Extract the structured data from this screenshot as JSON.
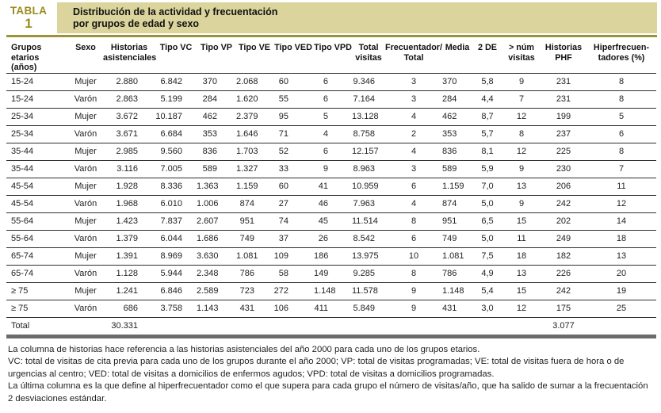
{
  "header": {
    "badge_label": "TABLA",
    "badge_number": "1",
    "title_line1": "Distribución de la actividad y frecuentación",
    "title_line2": "por grupos de edad y sexo"
  },
  "colors": {
    "accent_olive": "#9c8c1e",
    "title_bar_bg": "#dbd49d",
    "rule_olive": "#9b923a",
    "line_dark": "#2f2f2f",
    "bottom_bar_gray": "#6b6b6b",
    "text": "#1b1b1b"
  },
  "table": {
    "columns": [
      "Grupos etarios\n(años)",
      "Sexo",
      "Historias\nasistenciales",
      "Tipo VC",
      "Tipo VP",
      "Tipo VE",
      "Tipo VED",
      "Tipo VPD",
      "Total\nvisitas",
      "Frecuentador/\nTotal",
      "Media",
      "2 DE",
      "> núm\nvisitas",
      "Historias\nPHF",
      "Hiperfrecuen-\ntadores (%)"
    ],
    "rows": [
      [
        "15-24",
        "Mujer",
        "2.880",
        "6.842",
        "370",
        "2.068",
        "60",
        "6",
        "9.346",
        "3",
        "370",
        "5,8",
        "9",
        "231",
        "8"
      ],
      [
        "15-24",
        "Varón",
        "2.863",
        "5.199",
        "284",
        "1.620",
        "55",
        "6",
        "7.164",
        "3",
        "284",
        "4,4",
        "7",
        "231",
        "8"
      ],
      [
        "25-34",
        "Mujer",
        "3.672",
        "10.187",
        "462",
        "2.379",
        "95",
        "5",
        "13.128",
        "4",
        "462",
        "8,7",
        "12",
        "199",
        "5"
      ],
      [
        "25-34",
        "Varón",
        "3.671",
        "6.684",
        "353",
        "1.646",
        "71",
        "4",
        "8.758",
        "2",
        "353",
        "5,7",
        "8",
        "237",
        "6"
      ],
      [
        "35-44",
        "Mujer",
        "2.985",
        "9.560",
        "836",
        "1.703",
        "52",
        "6",
        "12.157",
        "4",
        "836",
        "8,1",
        "12",
        "225",
        "8"
      ],
      [
        "35-44",
        "Varón",
        "3.116",
        "7.005",
        "589",
        "1.327",
        "33",
        "9",
        "8.963",
        "3",
        "589",
        "5,9",
        "9",
        "230",
        "7"
      ],
      [
        "45-54",
        "Mujer",
        "1.928",
        "8.336",
        "1.363",
        "1.159",
        "60",
        "41",
        "10.959",
        "6",
        "1.159",
        "7,0",
        "13",
        "206",
        "11"
      ],
      [
        "45-54",
        "Varón",
        "1.968",
        "6.010",
        "1.006",
        "874",
        "27",
        "46",
        "7.963",
        "4",
        "874",
        "5,0",
        "9",
        "242",
        "12"
      ],
      [
        "55-64",
        "Mujer",
        "1.423",
        "7.837",
        "2.607",
        "951",
        "74",
        "45",
        "11.514",
        "8",
        "951",
        "6,5",
        "15",
        "202",
        "14"
      ],
      [
        "55-64",
        "Varón",
        "1.379",
        "6.044",
        "1.686",
        "749",
        "37",
        "26",
        "8.542",
        "6",
        "749",
        "5,0",
        "11",
        "249",
        "18"
      ],
      [
        "65-74",
        "Mujer",
        "1.391",
        "8.969",
        "3.630",
        "1.081",
        "109",
        "186",
        "13.975",
        "10",
        "1.081",
        "7,5",
        "18",
        "182",
        "13"
      ],
      [
        "65-74",
        "Varón",
        "1.128",
        "5.944",
        "2.348",
        "786",
        "58",
        "149",
        "9.285",
        "8",
        "786",
        "4,9",
        "13",
        "226",
        "20"
      ],
      [
        "≥ 75",
        "Mujer",
        "1.241",
        "6.846",
        "2.589",
        "723",
        "272",
        "1.148",
        "11.578",
        "9",
        "1.148",
        "5,4",
        "15",
        "242",
        "19"
      ],
      [
        "≥ 75",
        "Varón",
        "686",
        "3.758",
        "1.143",
        "431",
        "106",
        "411",
        "5.849",
        "9",
        "431",
        "3,0",
        "12",
        "175",
        "25"
      ]
    ],
    "total_row": [
      "Total",
      "",
      "30.331",
      "",
      "",
      "",
      "",
      "",
      "",
      "",
      "",
      "",
      "",
      "3.077",
      ""
    ]
  },
  "footnotes": [
    "La columna de historias hace referencia a las historias asistenciales del año 2000 para cada uno de los grupos etarios.",
    "VC: total de visitas de cita previa para cada uno de los grupos durante el año 2000; VP: total de visitas programadas; VE: total de visitas fuera de hora o de urgencias al centro; VED: total de visitas a domicilios de enfermos agudos; VPD: total de visitas a domicilios programadas.",
    "La última columna es la que define al hiperfrecuentador como el que supera para cada grupo el número de visitas/año, que ha salido de sumar a la frecuentación 2 desviaciones estándar."
  ]
}
